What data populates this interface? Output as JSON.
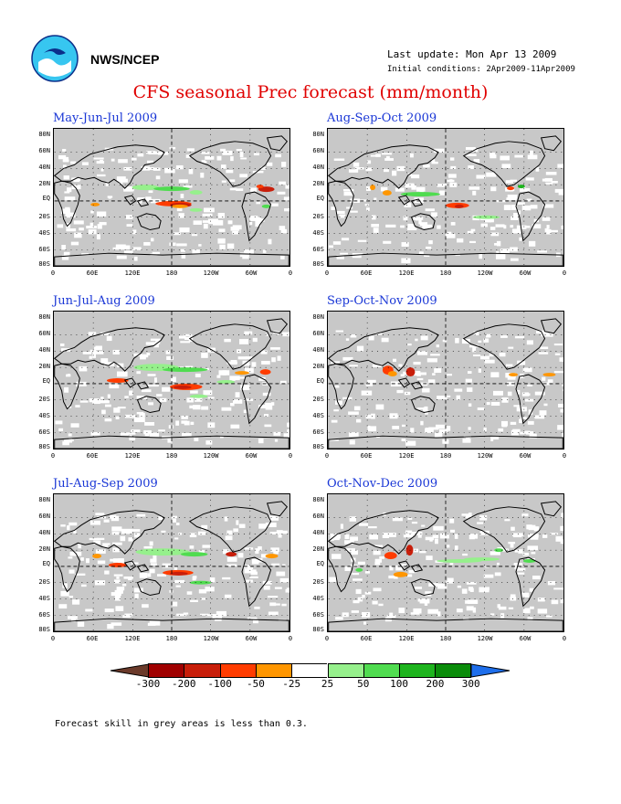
{
  "header": {
    "org": "NWS/NCEP",
    "last_update": "Last update: Mon Apr 13 2009",
    "initial_conditions": "Initial conditions: 2Apr2009-11Apr2009",
    "title": "CFS seasonal Prec forecast (mm/month)"
  },
  "lat_labels": [
    "80N",
    "60N",
    "40N",
    "20N",
    "EQ",
    "20S",
    "40S",
    "60S",
    "80S"
  ],
  "lon_labels": [
    "0",
    "60E",
    "120E",
    "180",
    "120W",
    "60W",
    "0"
  ],
  "panels": [
    {
      "id": "mjj",
      "title": "May-Jun-Jul 2009"
    },
    {
      "id": "aso",
      "title": "Aug-Sep-Oct 2009"
    },
    {
      "id": "jja",
      "title": "Jun-Jul-Aug 2009"
    },
    {
      "id": "son",
      "title": "Sep-Oct-Nov 2009"
    },
    {
      "id": "jas",
      "title": "Jul-Aug-Sep 2009"
    },
    {
      "id": "ond",
      "title": "Oct-Nov-Dec 2009"
    }
  ],
  "colorbar": {
    "labels": [
      "-300",
      "-200",
      "-100",
      "-50",
      "-25",
      "25",
      "50",
      "100",
      "200",
      "300"
    ],
    "colors": {
      "lt_-300": "#6b3a2a",
      "-300_-200": "#a00000",
      "-200_-100": "#c81e0a",
      "-100_-50": "#ff3c00",
      "-50_-25": "#ff9600",
      "-25_25": "#ffffff",
      "25_50": "#96f08c",
      "50_100": "#50dc50",
      "100_200": "#1eb41e",
      "200_300": "#0a8c0a",
      "gt_300": "#1e6eeb"
    }
  },
  "footnote": "Forecast skill in grey areas is less than 0.3."
}
